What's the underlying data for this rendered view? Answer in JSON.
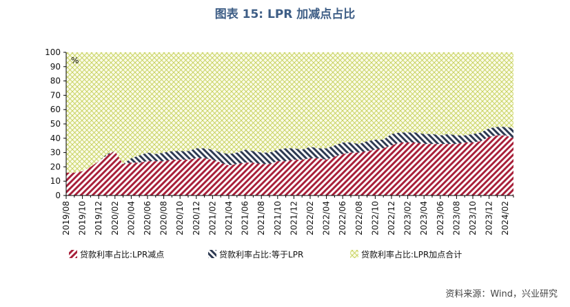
{
  "title": "图表 15: LPR 加减点占比",
  "source": "资料来源：Wind，兴业研究",
  "chart_data": {
    "type": "area",
    "stacked": true,
    "unit": "%",
    "ylim": [
      0,
      100
    ],
    "yticks": [
      0,
      10,
      20,
      30,
      40,
      50,
      60,
      70,
      80,
      90,
      100
    ],
    "categories": [
      "2019/08",
      "2019/09",
      "2019/10",
      "2019/11",
      "2019/12",
      "2020/01",
      "2020/02",
      "2020/03",
      "2020/04",
      "2020/05",
      "2020/06",
      "2020/07",
      "2020/08",
      "2020/09",
      "2020/10",
      "2020/11",
      "2020/12",
      "2021/01",
      "2021/02",
      "2021/03",
      "2021/04",
      "2021/05",
      "2021/06",
      "2021/07",
      "2021/08",
      "2021/09",
      "2021/10",
      "2021/11",
      "2021/12",
      "2022/01",
      "2022/02",
      "2022/03",
      "2022/04",
      "2022/05",
      "2022/06",
      "2022/07",
      "2022/08",
      "2022/09",
      "2022/10",
      "2022/11",
      "2022/12",
      "2023/01",
      "2023/02",
      "2023/03",
      "2023/04",
      "2023/05",
      "2023/06",
      "2023/07",
      "2023/08",
      "2023/09",
      "2023/10",
      "2023/11",
      "2023/12",
      "2024/01",
      "2024/02",
      "2024/03"
    ],
    "tick_labels": [
      "2019/08",
      "2019/10",
      "2019/12",
      "2020/02",
      "2020/04",
      "2020/06",
      "2020/08",
      "2020/10",
      "2020/12",
      "2021/02",
      "2021/04",
      "2021/06",
      "2021/08",
      "2021/10",
      "2021/12",
      "2022/02",
      "2022/04",
      "2022/06",
      "2022/08",
      "2022/10",
      "2022/12",
      "2023/02",
      "2023/04",
      "2023/06",
      "2023/08",
      "2023/10",
      "2023/12",
      "2024/02"
    ],
    "series": [
      {
        "name": "贷款利率占比:LPR减点",
        "color": "#a8203a",
        "values": [
          16,
          16,
          17,
          20,
          24,
          28,
          31,
          22,
          23,
          23,
          24,
          24,
          24,
          25,
          25,
          25,
          26,
          26,
          25,
          23,
          21,
          22,
          23,
          23,
          22,
          22,
          24,
          24,
          25,
          25,
          26,
          26,
          25,
          27,
          29,
          30,
          30,
          31,
          32,
          33,
          35,
          37,
          37,
          37,
          36,
          36,
          36,
          36,
          36,
          37,
          37,
          38,
          41,
          42,
          42,
          40
        ]
      },
      {
        "name": "贷款利率占比:等于LPR",
        "color": "#2e3a52",
        "values": [
          0,
          0,
          0,
          0,
          0,
          1,
          0,
          0,
          3,
          5,
          6,
          5,
          6,
          6,
          6,
          6,
          7,
          7,
          7,
          7,
          8,
          8,
          9,
          8,
          8,
          8,
          8,
          9,
          8,
          7,
          8,
          7,
          8,
          8,
          8,
          7,
          6,
          7,
          7,
          6,
          8,
          7,
          7,
          7,
          7,
          7,
          6,
          7,
          6,
          5,
          6,
          6,
          6,
          6,
          6,
          7
        ]
      },
      {
        "name": "贷款利率占比:LPR加点合计",
        "color": "#c4cf55",
        "values": [
          84,
          84,
          83,
          80,
          76,
          71,
          69,
          78,
          74,
          72,
          70,
          71,
          70,
          69,
          69,
          69,
          67,
          67,
          68,
          70,
          71,
          70,
          68,
          69,
          70,
          70,
          68,
          67,
          67,
          68,
          66,
          67,
          67,
          65,
          63,
          63,
          64,
          62,
          61,
          61,
          57,
          56,
          56,
          56,
          57,
          57,
          58,
          57,
          58,
          58,
          57,
          56,
          53,
          52,
          52,
          53
        ]
      }
    ],
    "legend_position": "bottom",
    "grid": false
  }
}
